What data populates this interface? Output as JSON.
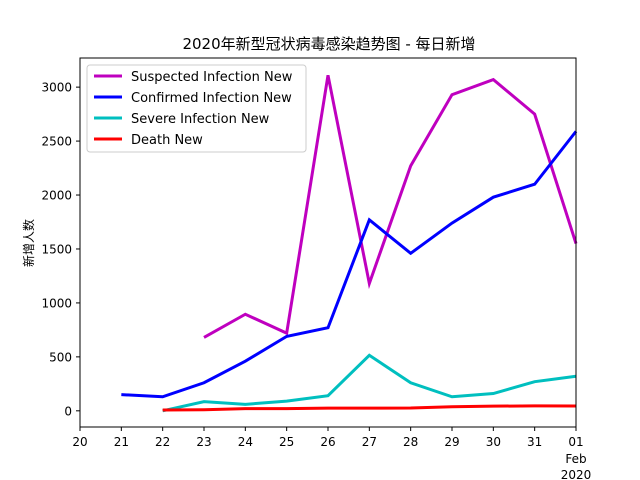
{
  "chart_data": {
    "type": "line",
    "title": "2020年新型冠状病毒感染趋势图 - 每日新增",
    "xlabel": "",
    "ylabel": "新增人数",
    "x": [
      "2020-01-20",
      "2020-01-21",
      "2020-01-22",
      "2020-01-23",
      "2020-01-24",
      "2020-01-25",
      "2020-01-26",
      "2020-01-27",
      "2020-01-28",
      "2020-01-29",
      "2020-01-30",
      "2020-01-31",
      "2020-02-01"
    ],
    "x_tick_labels": [
      "20",
      "21",
      "22",
      "23",
      "24",
      "25",
      "26",
      "27",
      "28",
      "29",
      "30",
      "31",
      "01"
    ],
    "x_secondary_labels": [
      "Feb",
      "2020"
    ],
    "xlim": [
      "2020-01-20",
      "2020-02-01"
    ],
    "ylim": [
      -150,
      3270
    ],
    "y_ticks": [
      0,
      500,
      1000,
      1500,
      2000,
      2500,
      3000
    ],
    "grid": false,
    "legend_position": "upper left",
    "series": [
      {
        "name": "Suspected Infection New",
        "color": "#bf00bf",
        "points": [
          [
            "2020-01-23",
            680
          ],
          [
            "2020-01-24",
            895
          ],
          [
            "2020-01-25",
            720
          ],
          [
            "2020-01-26",
            3110
          ],
          [
            "2020-01-27",
            1180
          ],
          [
            "2020-01-28",
            2270
          ],
          [
            "2020-01-29",
            2930
          ],
          [
            "2020-01-30",
            3070
          ],
          [
            "2020-01-31",
            2750
          ],
          [
            "2020-02-01",
            1550
          ]
        ]
      },
      {
        "name": "Confirmed Infection New",
        "color": "#0000ff",
        "points": [
          [
            "2020-01-21",
            150
          ],
          [
            "2020-01-22",
            130
          ],
          [
            "2020-01-23",
            260
          ],
          [
            "2020-01-24",
            460
          ],
          [
            "2020-01-25",
            690
          ],
          [
            "2020-01-26",
            770
          ],
          [
            "2020-01-27",
            1770
          ],
          [
            "2020-01-28",
            1460
          ],
          [
            "2020-01-29",
            1740
          ],
          [
            "2020-01-30",
            1980
          ],
          [
            "2020-01-31",
            2100
          ],
          [
            "2020-02-01",
            2590
          ]
        ]
      },
      {
        "name": "Severe Infection New",
        "color": "#00bfbf",
        "points": [
          [
            "2020-01-22",
            0
          ],
          [
            "2020-01-23",
            85
          ],
          [
            "2020-01-24",
            60
          ],
          [
            "2020-01-25",
            90
          ],
          [
            "2020-01-26",
            140
          ],
          [
            "2020-01-27",
            515
          ],
          [
            "2020-01-28",
            260
          ],
          [
            "2020-01-29",
            130
          ],
          [
            "2020-01-30",
            160
          ],
          [
            "2020-01-31",
            270
          ],
          [
            "2020-02-01",
            320
          ]
        ]
      },
      {
        "name": "Death New",
        "color": "#ff0000",
        "points": [
          [
            "2020-01-22",
            8
          ],
          [
            "2020-01-23",
            10
          ],
          [
            "2020-01-24",
            20
          ],
          [
            "2020-01-25",
            20
          ],
          [
            "2020-01-26",
            25
          ],
          [
            "2020-01-27",
            25
          ],
          [
            "2020-01-28",
            26
          ],
          [
            "2020-01-29",
            38
          ],
          [
            "2020-01-30",
            43
          ],
          [
            "2020-01-31",
            46
          ],
          [
            "2020-02-01",
            45
          ]
        ]
      }
    ]
  }
}
